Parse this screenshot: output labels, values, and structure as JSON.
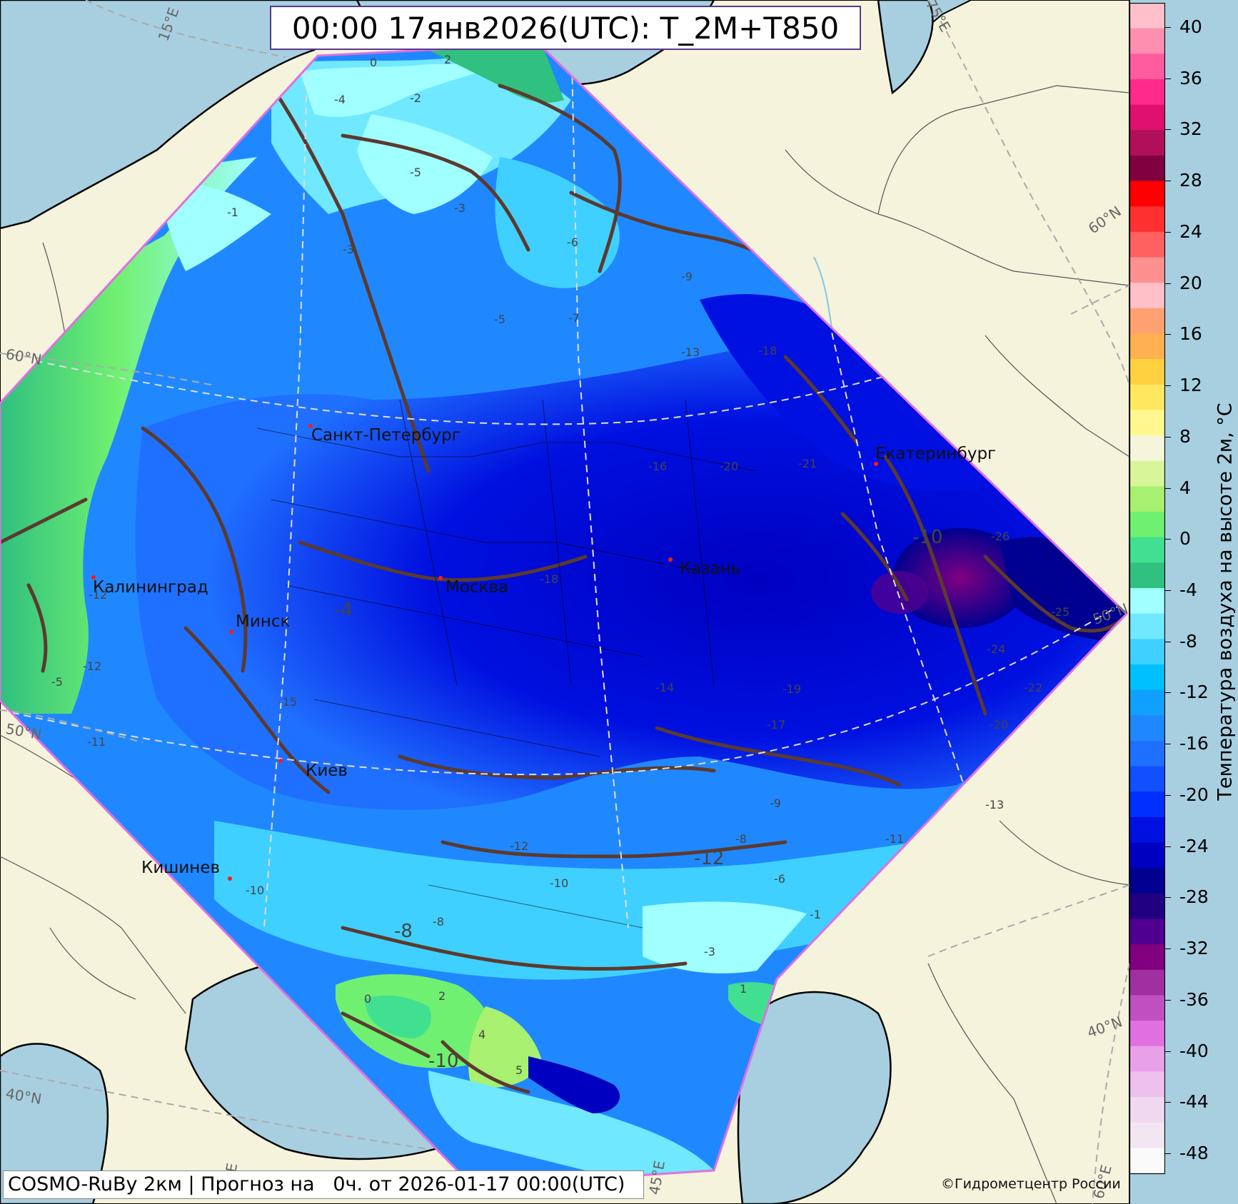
{
  "title": "00:00 17янв2026(UTC): T_2M+T850",
  "footer": "COSMO-RuBy 2км | Прогноз на   0ч. от 2026-01-17 00:00(UTC)",
  "copyright": "©Гидрометцентр России",
  "colorbar": {
    "label": "Температура воздуха на высоте 2м, °C",
    "ticks": [
      "40",
      "36",
      "32",
      "28",
      "24",
      "20",
      "16",
      "12",
      "8",
      "4",
      "0",
      "-4",
      "-8",
      "-12",
      "-16",
      "-20",
      "-24",
      "-28",
      "-32",
      "-36",
      "-40",
      "-44",
      "-48"
    ],
    "colors": [
      "#ffc0cb",
      "#ff8fb0",
      "#ff5ca0",
      "#ff2a8a",
      "#e01070",
      "#b0105a",
      "#800040",
      "#ff0000",
      "#ff3030",
      "#ff6060",
      "#ff9090",
      "#ffc0c8",
      "#ffa070",
      "#ffb050",
      "#ffd040",
      "#ffe860",
      "#fff890",
      "#f5f5dc",
      "#d8f59a",
      "#a8f070",
      "#70f070",
      "#40e090",
      "#30c080",
      "#a0ffff",
      "#70e8ff",
      "#40d0ff",
      "#00c0ff",
      "#10a0ff",
      "#2088ff",
      "#2070ff",
      "#1050ff",
      "#0030ff",
      "#0010e0",
      "#0000c0",
      "#000090",
      "#200080",
      "#500090",
      "#800080",
      "#a030a0",
      "#c050c0",
      "#e070e0",
      "#e8a0e8",
      "#eec0ee",
      "#f0d8f0",
      "#f2e6f2",
      "#fafafa"
    ]
  },
  "map": {
    "land_color": "#f5f3dc",
    "sea_color": "#a8cfe0",
    "domain_border_color": "#e070e0",
    "contour_color": "#5b3a2e",
    "cities": [
      {
        "name": "Санкт-Петербург"
      },
      {
        "name": "Москва"
      },
      {
        "name": "Калининград"
      },
      {
        "name": "Минск"
      },
      {
        "name": "Киев"
      },
      {
        "name": "Кишинев"
      },
      {
        "name": "Казань"
      },
      {
        "name": "Екатеринбург"
      }
    ],
    "grid_labels": [
      "15°E",
      "75°E",
      "60°N",
      "60°N",
      "50°N",
      "50°N",
      "40°N",
      "40°N",
      "45°E",
      "60°E",
      "E"
    ],
    "values": [
      "2",
      "0",
      "-2",
      "-4",
      "-5",
      "-3",
      "-3",
      "-1",
      "-6",
      "-7",
      "-5",
      "-9",
      "-13",
      "-18",
      "-16",
      "-20",
      "-21",
      "-26",
      "-25",
      "-24",
      "-22",
      "-20",
      "-17",
      "-19",
      "-18",
      "-12",
      "-10",
      "-8",
      "-6",
      "-11",
      "-13",
      "-1",
      "-3",
      "1",
      "2",
      "4",
      "5",
      "0",
      "-5",
      "-12",
      "-11",
      "-15",
      "-14",
      "-9",
      "-8",
      "-10",
      "-12",
      "-10",
      "-12",
      "-4",
      "-8",
      "-10"
    ]
  }
}
